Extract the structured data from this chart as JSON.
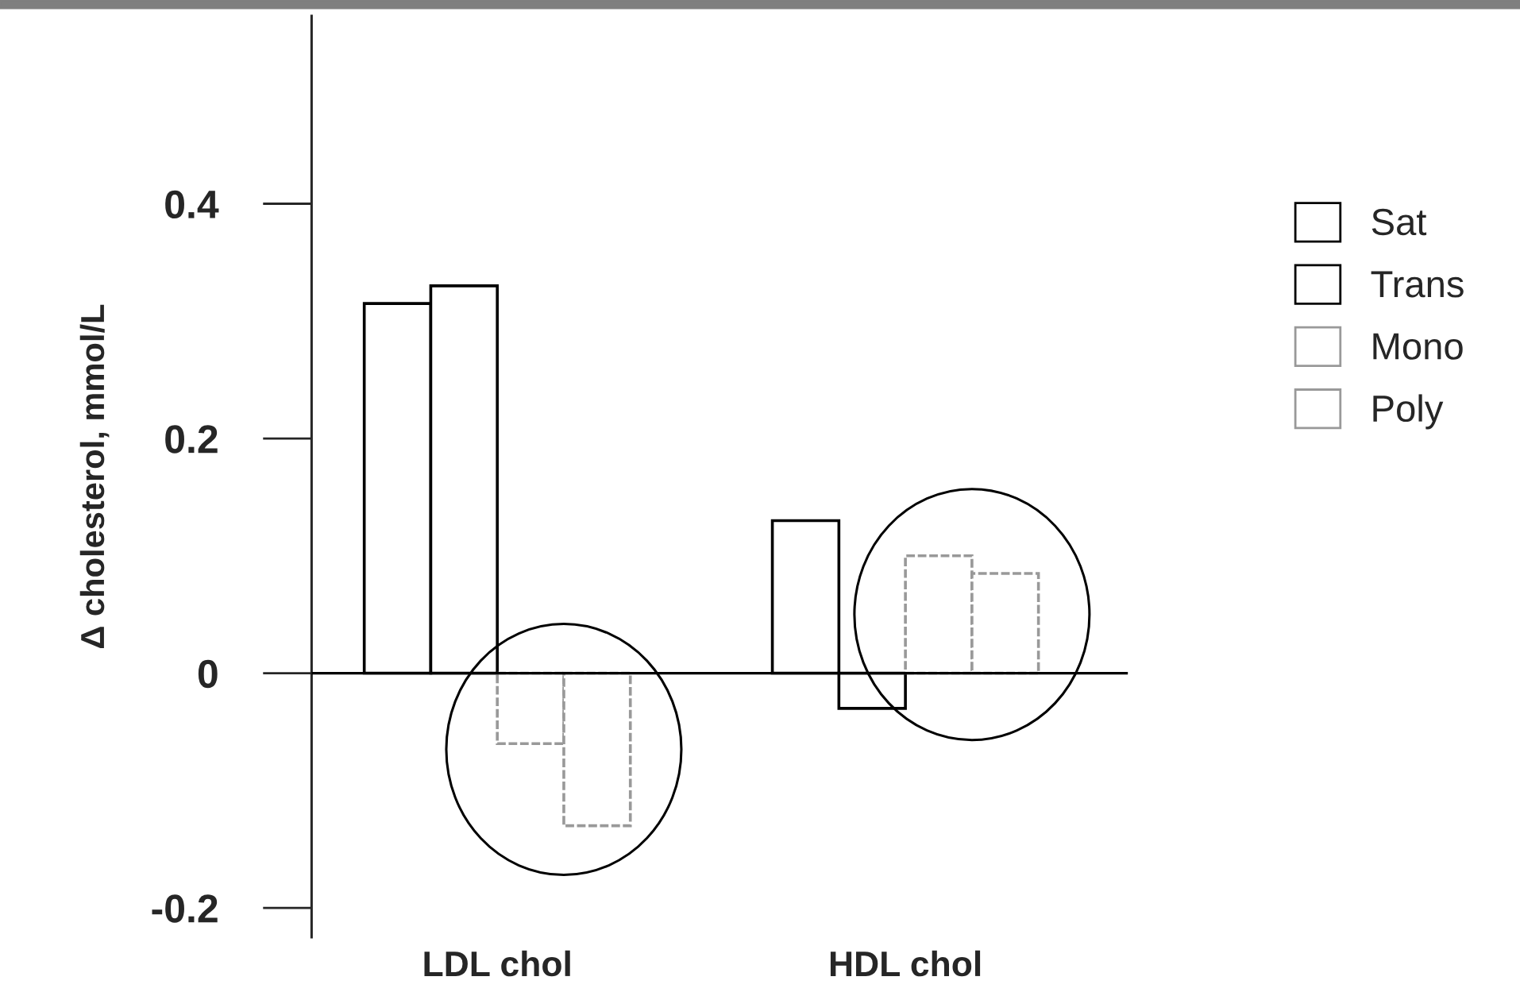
{
  "chart_data": {
    "type": "bar",
    "ylabel": "Δ cholesterol, mmol/L",
    "categories": [
      "LDL chol",
      "HDL chol"
    ],
    "series": [
      {
        "name": "Sat",
        "color": "#000000",
        "values": [
          0.315,
          0.13
        ]
      },
      {
        "name": "Trans",
        "color": "#000000",
        "values": [
          0.33,
          -0.03
        ]
      },
      {
        "name": "Mono",
        "color": "#999999",
        "values": [
          -0.06,
          0.1
        ]
      },
      {
        "name": "Poly",
        "color": "#999999",
        "values": [
          -0.13,
          0.085
        ]
      }
    ],
    "ylim": [
      -0.225,
      0.56
    ],
    "yticks": [
      {
        "value": 0.4,
        "label": "0.4"
      },
      {
        "value": 0.2,
        "label": "0.2"
      },
      {
        "value": 0,
        "label": "0"
      },
      {
        "value": -0.2,
        "label": "-0.2"
      }
    ],
    "ref_lines": [
      {
        "axis": "y",
        "value": 0,
        "color": "#000000"
      }
    ],
    "grid": false,
    "legend": "right"
  }
}
